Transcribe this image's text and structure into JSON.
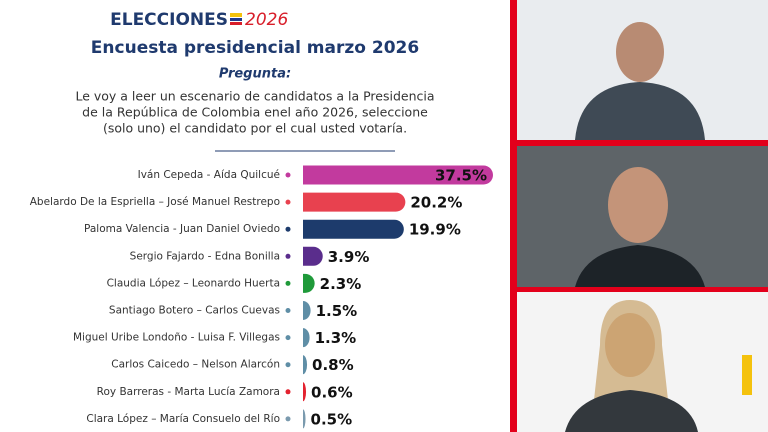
{
  "chart_data": {
    "type": "bar",
    "brand": "ELECCIONES",
    "brand_year": "2026",
    "title": "Encuesta presidencial marzo 2026",
    "question_label": "Pregunta:",
    "question": [
      "Le voy a leer un escenario de candidatos a la Presidencia",
      "de la República de Colombia enel año 2026, seleccione",
      "(solo uno) el candidato por el cual usted votaría."
    ],
    "categories": [
      "Iván Cepeda - Aída Quilcué",
      "Abelardo De la Espriella – José Manuel Restrepo",
      "Paloma Valencia - Juan Daniel Oviedo",
      "Sergio Fajardo - Edna Bonilla",
      "Claudia López – Leonardo Huerta",
      "Santiago Botero – Carlos Cuevas",
      "Miguel Uribe Londoño - Luisa F. Villegas",
      "Carlos Caicedo – Nelson Alarcón",
      "Roy Barreras - Marta Lucía Zamora",
      "Clara López – María Consuelo del Río"
    ],
    "values": [
      37.5,
      20.2,
      19.9,
      3.9,
      2.3,
      1.5,
      1.3,
      0.8,
      0.6,
      0.5
    ],
    "value_labels": [
      "37.5%",
      "20.2%",
      "19.9%",
      "3.9%",
      "2.3%",
      "1.5%",
      "1.3%",
      "0.8%",
      "0.6%",
      "0.5%"
    ],
    "colors": [
      "#c23a9e",
      "#e8414f",
      "#1d3b6c",
      "#5a2d8c",
      "#1f9a3a",
      "#5f8ea6",
      "#5f8ea6",
      "#5f8ea6",
      "#e3222f",
      "#7a9aae"
    ]
  }
}
